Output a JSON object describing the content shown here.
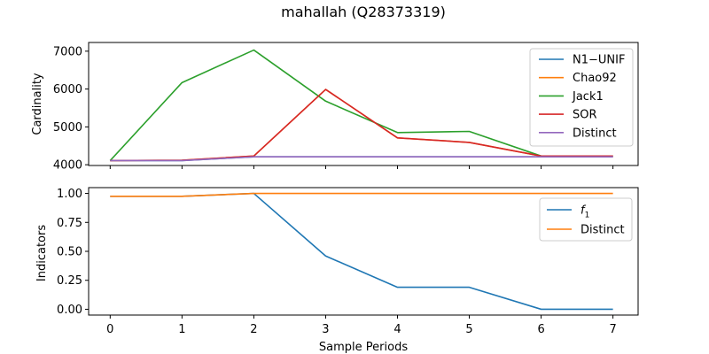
{
  "chart_data": [
    {
      "type": "line",
      "title": "mahallah (Q28373319)",
      "xlabel": "",
      "ylabel": "Cardinality",
      "x": [
        0,
        1,
        2,
        3,
        4,
        5,
        6,
        7
      ],
      "xlim": [
        -0.3,
        7.35
      ],
      "ylim": [
        3980,
        7230
      ],
      "yticks": [
        4000,
        5000,
        6000,
        7000
      ],
      "legend_position": "upper-right",
      "series": [
        {
          "name": "N1−UNIF",
          "color": "#1f77b4",
          "values": [
            4110,
            4110,
            4210,
            4210,
            4210,
            4210,
            4210,
            4210
          ]
        },
        {
          "name": "Chao92",
          "color": "#ff7f0e",
          "values": [
            4110,
            4120,
            4230,
            5990,
            4710,
            4590,
            4230,
            4230
          ]
        },
        {
          "name": "Jack1",
          "color": "#2ca02c",
          "values": [
            4110,
            6170,
            7030,
            5680,
            4850,
            4880,
            4230,
            4230
          ]
        },
        {
          "name": "SOR",
          "color": "#d62728",
          "values": [
            4110,
            4120,
            4230,
            5990,
            4710,
            4590,
            4230,
            4230
          ]
        },
        {
          "name": "Distinct",
          "color": "#9467bd",
          "values": [
            4110,
            4110,
            4210,
            4210,
            4210,
            4210,
            4210,
            4210
          ]
        }
      ]
    },
    {
      "type": "line",
      "xlabel": "Sample Periods",
      "ylabel": "Indicators",
      "x": [
        0,
        1,
        2,
        3,
        4,
        5,
        6,
        7
      ],
      "xlim": [
        -0.3,
        7.35
      ],
      "ylim": [
        -0.05,
        1.05
      ],
      "yticks": [
        0.0,
        0.25,
        0.5,
        0.75,
        1.0
      ],
      "ytick_labels": [
        "0.00",
        "0.25",
        "0.50",
        "0.75",
        "1.00"
      ],
      "xtick_labels": [
        "0",
        "1",
        "2",
        "3",
        "4",
        "5",
        "6",
        "7"
      ],
      "legend_position": "upper-right",
      "series": [
        {
          "name": "f",
          "name_subscript": "1",
          "color": "#1f77b4",
          "values": [
            0.975,
            0.975,
            1.0,
            0.46,
            0.19,
            0.19,
            0.0,
            0.0
          ]
        },
        {
          "name": "Distinct",
          "color": "#ff7f0e",
          "values": [
            0.975,
            0.975,
            1.0,
            1.0,
            1.0,
            1.0,
            1.0,
            1.0
          ]
        }
      ]
    }
  ]
}
